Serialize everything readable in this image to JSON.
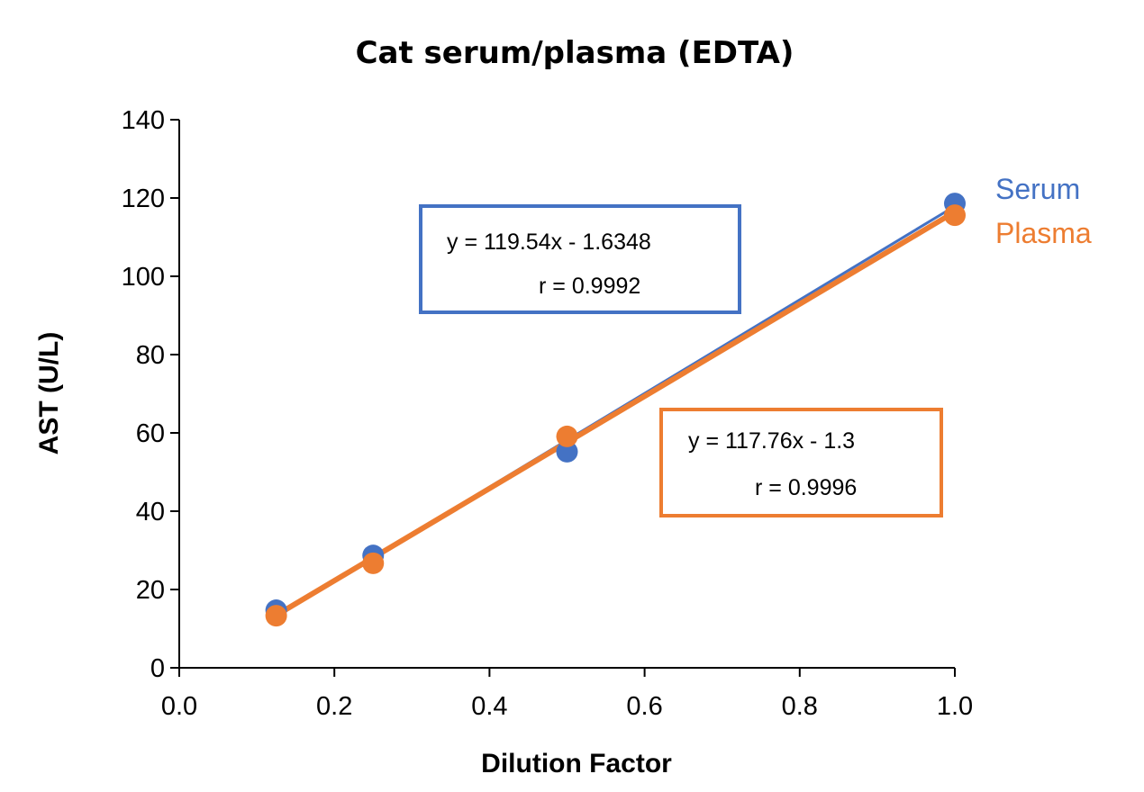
{
  "chart_data": {
    "type": "scatter",
    "title": "Cat serum/plasma (EDTA)",
    "xlabel": "Dilution Factor",
    "ylabel": "AST (U/L)",
    "xlim": [
      0,
      1.0
    ],
    "ylim": [
      0,
      140
    ],
    "xticks": [
      "0.0",
      "0.2",
      "0.4",
      "0.6",
      "0.8",
      "1.0"
    ],
    "yticks": [
      "0",
      "20",
      "40",
      "60",
      "80",
      "100",
      "120",
      "140"
    ],
    "grid": false,
    "legend_placement": "right, beside line ends",
    "series": [
      {
        "name": "Serum",
        "color": "#4472C4",
        "x": [
          0.125,
          0.25,
          0.5,
          1.0
        ],
        "y": [
          14.7,
          28.7,
          55.2,
          118.6
        ],
        "trendline": {
          "slope": 119.54,
          "intercept": -1.6348
        },
        "equation": "y = 119.54x - 1.6348",
        "r": "r = 0.9992"
      },
      {
        "name": "Plasma",
        "color": "#ED7D31",
        "x": [
          0.125,
          0.25,
          0.5,
          1.0
        ],
        "y": [
          13.3,
          26.7,
          59.1,
          115.6
        ],
        "trendline": {
          "slope": 117.76,
          "intercept": -1.3
        },
        "equation": "y = 117.76x - 1.3",
        "r": "r = 0.9996"
      }
    ]
  }
}
